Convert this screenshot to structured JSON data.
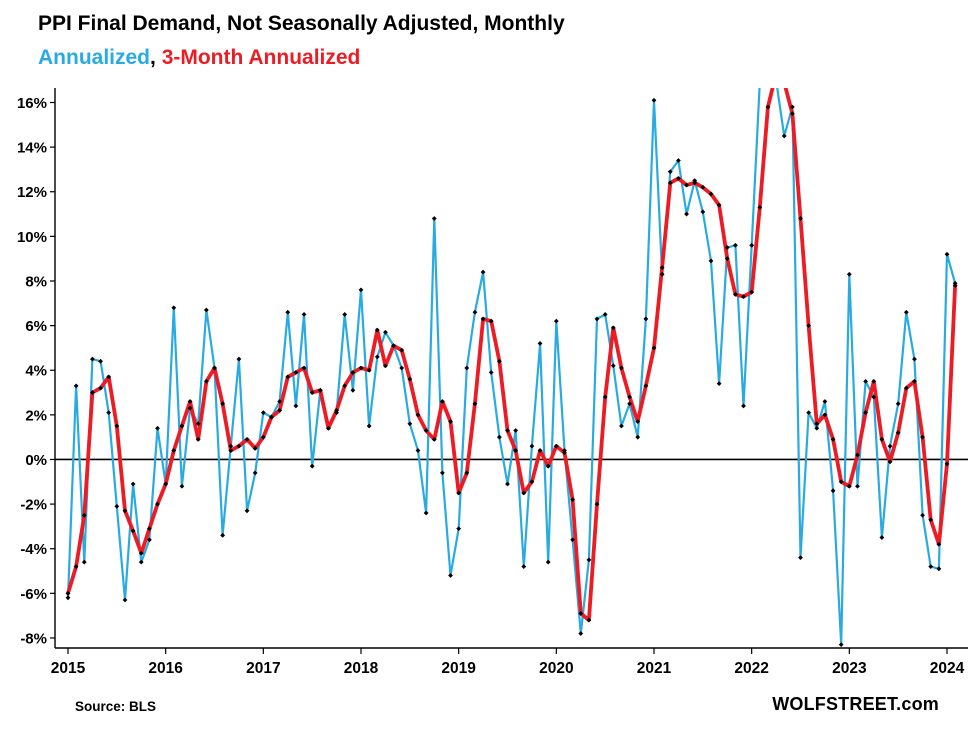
{
  "page": {
    "background": "#ffffff"
  },
  "header": {
    "title": "PPI Final Demand, Not Seasonally Adjusted, Monthly",
    "subtitle_parts": [
      {
        "text": "Annualized",
        "color": "#29abe2"
      },
      {
        "text": ", ",
        "color": "#000000"
      },
      {
        "text": "3-Month Annualized",
        "color": "#ed1c24"
      }
    ]
  },
  "footer": {
    "source": "Source: BLS",
    "watermark": "WOLFSTREET.com"
  },
  "chart_data": {
    "type": "line",
    "title": "PPI Final Demand, Not Seasonally Adjusted, Monthly",
    "xlabel": "",
    "ylabel": "",
    "x_start": "2015-01",
    "x_interval": "monthly",
    "x_tick_labels": [
      "2015",
      "2016",
      "2017",
      "2018",
      "2019",
      "2020",
      "2021",
      "2022",
      "2023",
      "2024"
    ],
    "y_ticks": [
      -8,
      -6,
      -4,
      -2,
      0,
      2,
      4,
      6,
      8,
      10,
      12,
      14,
      16
    ],
    "y_tick_format": "percent",
    "ylim": [
      -8,
      16.6
    ],
    "grid": false,
    "zero_line": true,
    "legend_position": "in-title",
    "series": [
      {
        "name": "Annualized",
        "color": "#29abe2",
        "line_width": 2.2,
        "marker": "diamond",
        "marker_color": "#000000",
        "values": [
          -6.2,
          3.3,
          -4.6,
          4.5,
          4.4,
          2.1,
          -2.1,
          -6.3,
          -1.1,
          -4.6,
          -3.6,
          1.4,
          -1.1,
          6.8,
          -1.2,
          2.3,
          1.6,
          6.7,
          4.1,
          -3.4,
          0.6,
          4.5,
          -2.3,
          -0.6,
          2.1,
          1.9,
          2.6,
          6.6,
          2.4,
          6.5,
          -0.3,
          3.1,
          1.4,
          2.1,
          6.5,
          3.1,
          7.6,
          1.5,
          4.6,
          5.7,
          5.1,
          4.1,
          1.6,
          0.4,
          -2.4,
          10.8,
          -0.6,
          -5.2,
          -3.1,
          4.1,
          6.6,
          8.4,
          3.9,
          1.0,
          -1.1,
          1.3,
          -4.8,
          0.6,
          5.2,
          -4.6,
          6.2,
          0.4,
          -3.6,
          -7.8,
          -4.5,
          6.3,
          6.5,
          4.2,
          1.5,
          2.5,
          1.0,
          6.3,
          16.1,
          8.3,
          12.9,
          13.4,
          11.0,
          12.5,
          11.1,
          8.9,
          3.4,
          9.5,
          9.6,
          2.4,
          9.6,
          16.9,
          17.5,
          17.0,
          14.5,
          15.8,
          -4.4,
          2.1,
          1.4,
          2.6,
          -1.4,
          -8.3,
          8.3,
          -1.2,
          3.5,
          2.8,
          -3.5,
          0.6,
          2.5,
          6.6,
          4.5,
          -2.5,
          -4.8,
          -4.9,
          9.2,
          7.9
        ]
      },
      {
        "name": "3-Month Annualized",
        "color": "#ed1c24",
        "line_width": 3.8,
        "marker": "diamond",
        "marker_color": "#000000",
        "values": [
          -6.0,
          -4.8,
          -2.5,
          3.0,
          3.2,
          3.7,
          1.5,
          -2.3,
          -3.2,
          -4.2,
          -3.1,
          -2.0,
          -1.1,
          0.4,
          1.5,
          2.6,
          0.9,
          3.5,
          4.1,
          2.5,
          0.4,
          0.6,
          0.9,
          0.5,
          1.0,
          1.9,
          2.2,
          3.7,
          3.9,
          4.1,
          3.0,
          3.1,
          1.4,
          2.2,
          3.3,
          3.9,
          4.1,
          4.0,
          5.8,
          4.2,
          5.1,
          4.9,
          3.6,
          2.0,
          1.3,
          0.9,
          2.6,
          1.7,
          -1.5,
          -0.6,
          2.5,
          6.3,
          6.2,
          4.4,
          1.3,
          0.4,
          -1.5,
          -1.0,
          0.4,
          -0.3,
          0.6,
          0.3,
          -1.8,
          -6.9,
          -7.2,
          -2.0,
          2.8,
          5.9,
          4.1,
          2.8,
          1.7,
          3.3,
          5.0,
          8.6,
          12.4,
          12.6,
          12.3,
          12.4,
          12.2,
          11.9,
          11.4,
          9.0,
          7.4,
          7.3,
          7.5,
          11.3,
          15.8,
          17.3,
          16.9,
          15.5,
          10.8,
          6.0,
          1.6,
          2.0,
          0.9,
          -1.0,
          -1.2,
          0.2,
          2.1,
          3.5,
          0.9,
          -0.1,
          1.2,
          3.2,
          3.5,
          1.0,
          -2.7,
          -3.8,
          -0.2,
          7.8
        ]
      }
    ]
  }
}
